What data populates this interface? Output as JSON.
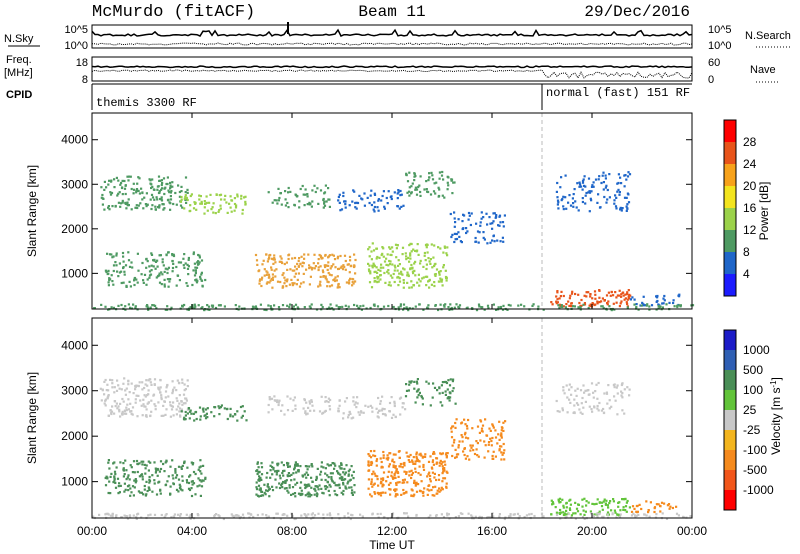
{
  "header": {
    "station": "McMurdo (fitACF)",
    "beam": "Beam 11",
    "date": "29/Dec/2016"
  },
  "status_panels": {
    "nsky": {
      "label": "N.Sky",
      "ticks": [
        "10^5",
        "10^0"
      ],
      "right_label": "N.Search",
      "right_ticks": [
        "10^5",
        "10^0"
      ]
    },
    "freq": {
      "label": "Freq.",
      "unit": "[MHz]",
      "ticks": [
        "18",
        "8"
      ],
      "right_label": "Nave",
      "right_ticks": [
        "60",
        "0"
      ]
    },
    "cpid": {
      "label": "CPID",
      "modes": [
        {
          "name": "themis 3300 RF",
          "start_hour": 0
        },
        {
          "name": "normal (fast) 151 RF",
          "start_hour": 18
        }
      ]
    }
  },
  "chart_data": [
    {
      "type": "heatmap",
      "name": "power-panel",
      "ylabel": "Slant Range [km]",
      "yticks": [
        1000,
        2000,
        3000,
        4000
      ],
      "ylim": [
        200,
        4600
      ],
      "xlim_hours": [
        0,
        24
      ],
      "colorbar": {
        "label": "Power [dB]",
        "ticks": [
          "28",
          "24",
          "20",
          "16",
          "12",
          "8",
          "4"
        ],
        "colors": [
          "#ff0000",
          "#e8541a",
          "#f7a21b",
          "#f3e41e",
          "#9bd24a",
          "#4e9a62",
          "#1f66c9",
          "#1c1cff"
        ]
      },
      "patches": [
        {
          "t0": 0.3,
          "t1": 3.8,
          "r0": 2450,
          "r1": 3200,
          "color": "#4e9a62",
          "density": 0.55
        },
        {
          "t0": 3.5,
          "t1": 6.2,
          "r0": 2350,
          "r1": 2800,
          "color": "#9bd24a",
          "density": 0.5
        },
        {
          "t0": 7.0,
          "t1": 9.5,
          "r0": 2500,
          "r1": 3000,
          "color": "#4e9a62",
          "density": 0.4
        },
        {
          "t0": 9.8,
          "t1": 12.5,
          "r0": 2400,
          "r1": 2900,
          "color": "#1f66c9",
          "density": 0.4
        },
        {
          "t0": 12.5,
          "t1": 14.5,
          "r0": 2700,
          "r1": 3300,
          "color": "#4e9a62",
          "density": 0.45
        },
        {
          "t0": 0.5,
          "t1": 4.5,
          "r0": 700,
          "r1": 1500,
          "color": "#4e9a62",
          "density": 0.45
        },
        {
          "t0": 6.5,
          "t1": 10.5,
          "r0": 700,
          "r1": 1450,
          "color": "#e8a13a",
          "density": 0.6
        },
        {
          "t0": 11.0,
          "t1": 14.2,
          "r0": 700,
          "r1": 1700,
          "color": "#9bd24a",
          "density": 0.55
        },
        {
          "t0": 14.3,
          "t1": 16.5,
          "r0": 1700,
          "r1": 2400,
          "color": "#1f66c9",
          "density": 0.4
        },
        {
          "t0": 18.3,
          "t1": 21.5,
          "r0": 280,
          "r1": 650,
          "color": "#e8541a",
          "density": 0.7
        },
        {
          "t0": 18.5,
          "t1": 21.5,
          "r0": 2400,
          "r1": 3300,
          "color": "#1f66c9",
          "density": 0.35
        },
        {
          "t0": 21.5,
          "t1": 23.5,
          "r0": 300,
          "r1": 550,
          "color": "#1f66c9",
          "density": 0.5
        },
        {
          "t0": 0.0,
          "t1": 24.0,
          "r0": 200,
          "r1": 330,
          "color": "#4e9a62",
          "density": 0.7
        }
      ]
    },
    {
      "type": "heatmap",
      "name": "velocity-panel",
      "ylabel": "Slant Range [km]",
      "yticks": [
        1000,
        2000,
        3000,
        4000
      ],
      "ylim": [
        200,
        4600
      ],
      "xlim_hours": [
        0,
        24
      ],
      "xticks": [
        "00:00",
        "04:00",
        "08:00",
        "12:00",
        "16:00",
        "20:00",
        "00:00"
      ],
      "xlabel": "Time UT",
      "colorbar": {
        "label": "Velocity [m s^-1]",
        "ticks": [
          "1000",
          "500",
          "100",
          "25",
          "-25",
          "-100",
          "-500",
          "-1000"
        ],
        "colors": [
          "#1c1cc8",
          "#2f5fb3",
          "#4a8f57",
          "#62c43a",
          "#c8c8c8",
          "#f3b51e",
          "#f58a1d",
          "#f2561a",
          "#ff0000"
        ]
      },
      "patches": [
        {
          "t0": 0.3,
          "t1": 3.8,
          "r0": 2450,
          "r1": 3300,
          "color": "#c8c8c8",
          "density": 0.55
        },
        {
          "t0": 3.5,
          "t1": 6.2,
          "r0": 2350,
          "r1": 2700,
          "color": "#4a8f57",
          "density": 0.5
        },
        {
          "t0": 7.0,
          "t1": 9.5,
          "r0": 2500,
          "r1": 2900,
          "color": "#c8c8c8",
          "density": 0.45
        },
        {
          "t0": 9.8,
          "t1": 12.5,
          "r0": 2400,
          "r1": 2900,
          "color": "#c8c8c8",
          "density": 0.4
        },
        {
          "t0": 12.5,
          "t1": 14.5,
          "r0": 2700,
          "r1": 3300,
          "color": "#4a8f57",
          "density": 0.4
        },
        {
          "t0": 0.5,
          "t1": 4.5,
          "r0": 700,
          "r1": 1500,
          "color": "#4a8f57",
          "density": 0.5
        },
        {
          "t0": 6.5,
          "t1": 10.5,
          "r0": 700,
          "r1": 1450,
          "color": "#4a8f57",
          "density": 0.75
        },
        {
          "t0": 11.0,
          "t1": 14.2,
          "r0": 700,
          "r1": 1700,
          "color": "#f58a1d",
          "density": 0.7
        },
        {
          "t0": 14.3,
          "t1": 16.5,
          "r0": 1500,
          "r1": 2400,
          "color": "#f58a1d",
          "density": 0.45
        },
        {
          "t0": 18.3,
          "t1": 21.5,
          "r0": 280,
          "r1": 650,
          "color": "#62c43a",
          "density": 0.7
        },
        {
          "t0": 21.5,
          "t1": 23.5,
          "r0": 350,
          "r1": 600,
          "color": "#f58a1d",
          "density": 0.5
        },
        {
          "t0": 18.5,
          "t1": 21.5,
          "r0": 2500,
          "r1": 3200,
          "color": "#c8c8c8",
          "density": 0.35
        },
        {
          "t0": 0.0,
          "t1": 24.0,
          "r0": 200,
          "r1": 330,
          "color": "#c8c8c8",
          "density": 0.6
        }
      ]
    }
  ]
}
